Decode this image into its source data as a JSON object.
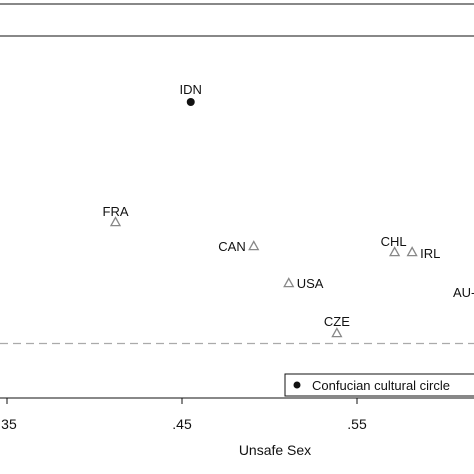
{
  "chart_data": {
    "type": "scatter",
    "xlabel": "Unsafe Sex",
    "ylabel": "",
    "title": "",
    "xlim": [
      0.3355,
      0.6155
    ],
    "x_ticks": [
      0.35,
      0.45,
      0.55
    ],
    "x_tick_labels": [
      ".35",
      ".45",
      ".55"
    ],
    "grid": false,
    "reference_line": {
      "style": "dashed",
      "color": "#aaaaaa"
    },
    "legend": {
      "position": "bottom-right",
      "entries": [
        {
          "label": "Confucian cultural circle",
          "marker": "filled-circle"
        }
      ]
    },
    "series": [
      {
        "name": "Confucian cultural circle",
        "marker": "filled-circle",
        "color": "#111111",
        "points": [
          {
            "label": "IDN",
            "x": 0.455,
            "y": 102
          }
        ]
      },
      {
        "marker": "hollow-triangle",
        "color": "#888888",
        "points": [
          {
            "label": "FRA",
            "x": 0.412,
            "y": 222
          },
          {
            "label": "CAN",
            "x": 0.491,
            "y": 246
          },
          {
            "label": "CHL",
            "x": 0.5715,
            "y": 252
          },
          {
            "label": "IRL",
            "x": 0.5815,
            "y": 252
          },
          {
            "label": "USA",
            "x": 0.511,
            "y": 283
          },
          {
            "label": "CZE",
            "x": 0.5385,
            "y": 333
          },
          {
            "label": "AU",
            "x": 0.616,
            "y": 292
          }
        ]
      }
    ]
  }
}
